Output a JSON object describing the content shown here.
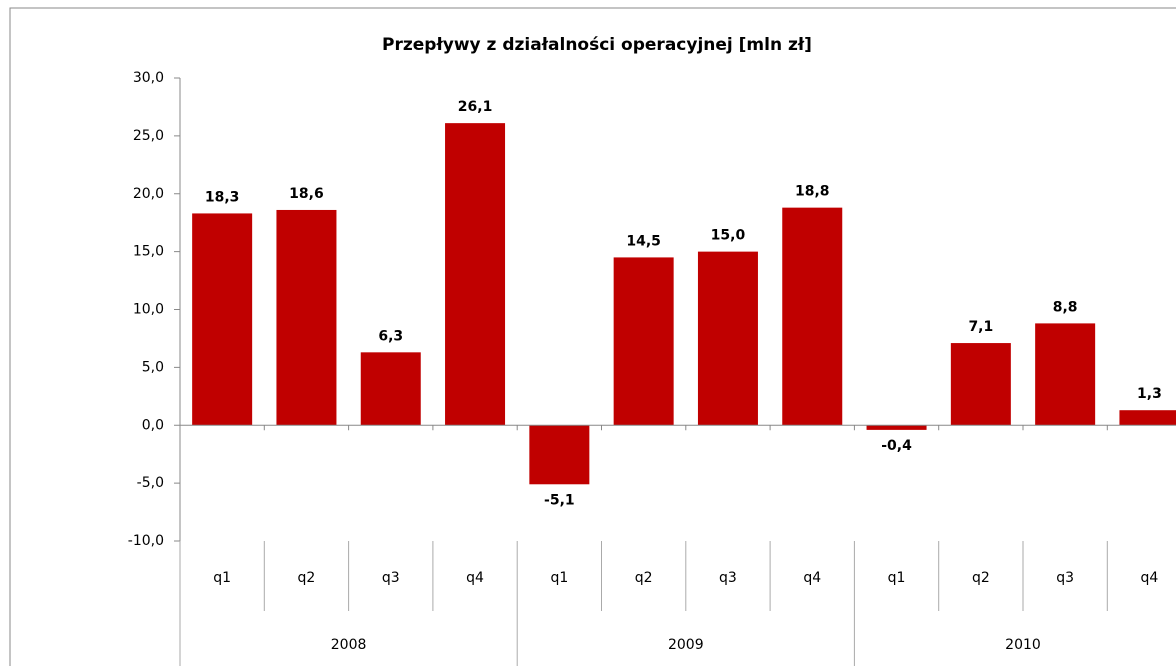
{
  "chart_data": {
    "type": "bar",
    "title": "Przepływy z działalności operacyjnej [mln zł]",
    "categories": [
      "q1",
      "q2",
      "q3",
      "q4",
      "q1",
      "q2",
      "q3",
      "q4",
      "q1",
      "q2",
      "q3",
      "q4"
    ],
    "groups": [
      "2008",
      "2009",
      "2010"
    ],
    "values": [
      18.3,
      18.6,
      6.3,
      26.1,
      -5.1,
      14.5,
      15.0,
      18.8,
      -0.4,
      7.1,
      8.8,
      1.3
    ],
    "value_labels": [
      "18,3",
      "18,6",
      "6,3",
      "26,1",
      "-5,1",
      "14,5",
      "15,0",
      "18,8",
      "-0,4",
      "7,1",
      "8,8",
      "1,3"
    ],
    "color": "#c00000",
    "ylim": [
      -10,
      30
    ],
    "yticks": [
      {
        "value": -10,
        "label": "-10,0"
      },
      {
        "value": -5,
        "label": "-5,0"
      },
      {
        "value": 0,
        "label": "0,0"
      },
      {
        "value": 5,
        "label": "5,0"
      },
      {
        "value": 10,
        "label": "10,0"
      },
      {
        "value": 15,
        "label": "15,0"
      },
      {
        "value": 20,
        "label": "20,0"
      },
      {
        "value": 25,
        "label": "25,0"
      },
      {
        "value": 30,
        "label": "30,0"
      }
    ],
    "grid": false
  }
}
